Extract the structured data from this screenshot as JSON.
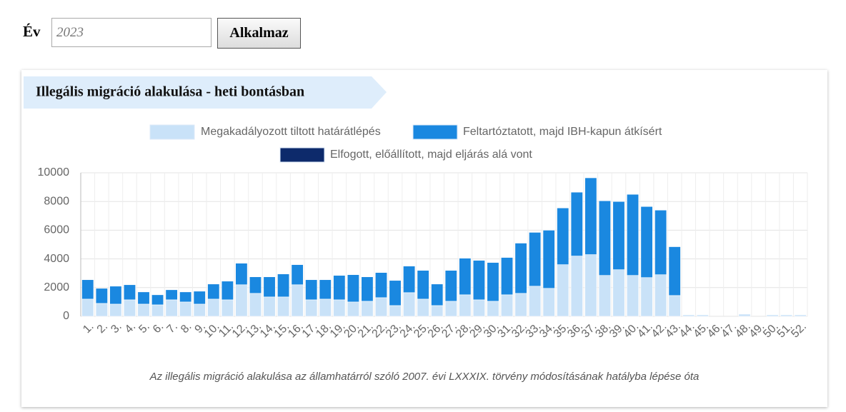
{
  "form": {
    "label": "Év",
    "placeholder": "2023",
    "button": "Alkalmaz"
  },
  "chart_data": {
    "type": "bar",
    "stacked": true,
    "title": "Illegális migráció alakulása - heti bontásban",
    "caption": "Az illegális migráció alakulása az államhatárról szóló 2007. évi LXXXIX. törvény módosításának hatályba lépése óta",
    "categories": [
      "1.",
      "2.",
      "3.",
      "4.",
      "5.",
      "6.",
      "7.",
      "8.",
      "9.",
      "10.",
      "11.",
      "12.",
      "13.",
      "14.",
      "15.",
      "16.",
      "17.",
      "18.",
      "19.",
      "20.",
      "21.",
      "22.",
      "23.",
      "24.",
      "25.",
      "26.",
      "27.",
      "28.",
      "29.",
      "30.",
      "31.",
      "32.",
      "33.",
      "34.",
      "35.",
      "36.",
      "37.",
      "38.",
      "39.",
      "40.",
      "41.",
      "42.",
      "43.",
      "44.",
      "45.",
      "46.",
      "47.",
      "48.",
      "49.",
      "50.",
      "51.",
      "52."
    ],
    "series": [
      {
        "name": "Megakadályozott tiltott határátlépés",
        "color": "#c9e2f8",
        "values": [
          1200,
          900,
          850,
          1150,
          850,
          800,
          1150,
          1000,
          850,
          1200,
          1150,
          2200,
          1600,
          1350,
          1350,
          2200,
          1150,
          1200,
          1150,
          1000,
          1050,
          1300,
          750,
          1650,
          1200,
          750,
          1050,
          1500,
          1150,
          1050,
          1500,
          1600,
          2100,
          1950,
          3600,
          4200,
          4300,
          2850,
          3250,
          2850,
          2700,
          2900,
          1450,
          100,
          100,
          0,
          0,
          150,
          0,
          100,
          100,
          100
        ]
      },
      {
        "name": "Feltartóztatott, majd IBH-kapun átkísért",
        "color": "#1a88e0",
        "values": [
          1350,
          1050,
          1250,
          1050,
          850,
          700,
          700,
          700,
          900,
          1050,
          1300,
          1500,
          1150,
          1400,
          1600,
          1400,
          1400,
          1350,
          1700,
          1900,
          1700,
          1750,
          1750,
          1850,
          2000,
          1500,
          2150,
          2550,
          2750,
          2700,
          2600,
          3500,
          3750,
          4050,
          3950,
          4450,
          5350,
          5200,
          4750,
          5650,
          4950,
          4500,
          3400,
          0,
          0,
          0,
          0,
          0,
          0,
          0,
          0,
          0
        ]
      },
      {
        "name": "Elfogott, előállított, majd eljárás alá vont",
        "color": "#0d2a6b",
        "values": [
          0,
          0,
          0,
          0,
          0,
          0,
          0,
          0,
          0,
          0,
          0,
          0,
          0,
          0,
          0,
          0,
          0,
          0,
          0,
          0,
          0,
          0,
          0,
          0,
          0,
          0,
          0,
          0,
          0,
          0,
          0,
          0,
          0,
          0,
          0,
          0,
          0,
          0,
          0,
          0,
          0,
          0,
          0,
          0,
          0,
          0,
          0,
          0,
          0,
          0,
          0,
          0
        ]
      }
    ],
    "ylim": [
      0,
      10000
    ],
    "yticks": [
      0,
      2000,
      4000,
      6000,
      8000,
      10000
    ],
    "grid": true
  }
}
